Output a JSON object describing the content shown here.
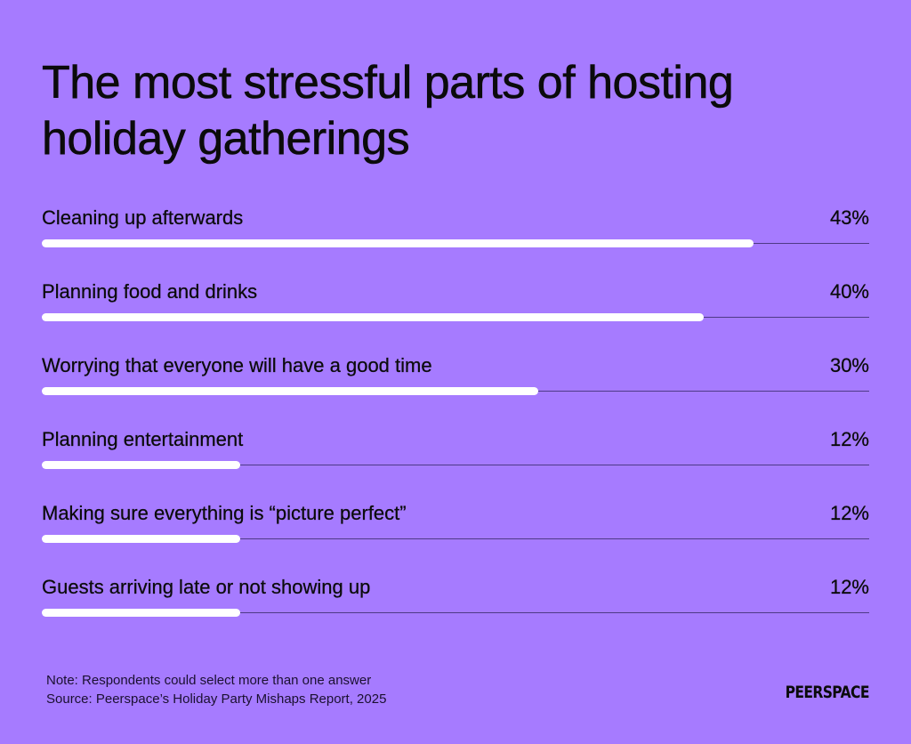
{
  "title": "The most stressful parts of hosting holiday gatherings",
  "colors": {
    "background": "#A67BFF",
    "bar": "#FFFFFF",
    "track": "#4E3A86",
    "text": "#0B0B0B"
  },
  "scale_max": 50,
  "rows": [
    {
      "label": "Cleaning up afterwards",
      "value": 43,
      "value_label": "43%"
    },
    {
      "label": "Planning food and drinks",
      "value": 40,
      "value_label": "40%"
    },
    {
      "label": "Worrying that everyone will have a good time",
      "value": 30,
      "value_label": "30%"
    },
    {
      "label": "Planning entertainment",
      "value": 12,
      "value_label": "12%"
    },
    {
      "label": "Making sure everything is “picture perfect”",
      "value": 12,
      "value_label": "12%"
    },
    {
      "label": "Guests arriving late or not showing up",
      "value": 12,
      "value_label": "12%"
    }
  ],
  "footnote": {
    "note": "Note: Respondents could select more than one answer",
    "source": "Source: Peerspace’s Holiday Party Mishaps Report, 2025"
  },
  "brand": {
    "logo_text": "PEERSPACE"
  },
  "chart_data": {
    "type": "bar",
    "orientation": "horizontal",
    "title": "The most stressful parts of hosting holiday gatherings",
    "categories": [
      "Cleaning up afterwards",
      "Planning food and drinks",
      "Worrying that everyone will have a good time",
      "Planning entertainment",
      "Making sure everything is “picture perfect”",
      "Guests arriving late or not showing up"
    ],
    "values": [
      43,
      40,
      30,
      12,
      12,
      12
    ],
    "unit": "%",
    "xlabel": "",
    "ylabel": "",
    "xlim": [
      0,
      50
    ],
    "grid": false,
    "legend": null,
    "annotations": [
      "Note: Respondents could select more than one answer",
      "Source: Peerspace’s Holiday Party Mishaps Report, 2025"
    ]
  }
}
